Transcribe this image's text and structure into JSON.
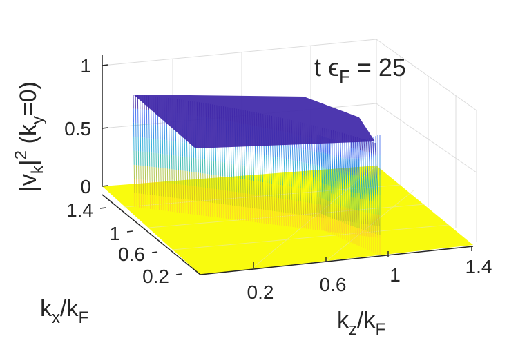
{
  "chart_data": {
    "type": "surface",
    "annotation": {
      "prefix": "t ",
      "symbol": "ϵ",
      "sub": "F",
      "suffix": " = 25"
    },
    "zlabel": {
      "base": "|v",
      "sub1": "k",
      "mid": "|",
      "sup": "2",
      "open": " (k",
      "sub2": "y",
      "close": "=0)"
    },
    "xlabel": {
      "base": "k",
      "sub": "x",
      "mid": "/k",
      "sub2": "F"
    },
    "ylabel": {
      "base": "k",
      "sub": "z",
      "mid": "/k",
      "sub2": "F"
    },
    "z_ticks": [
      "0",
      "0.5",
      "1"
    ],
    "kx_ticks": [
      "0.2",
      "0.6",
      "1",
      "1.4"
    ],
    "kz_ticks": [
      "0.2",
      "0.6",
      "1",
      "1.4"
    ],
    "zlim": [
      0,
      1
    ],
    "plateau_value": 0.75,
    "floor_color": "#f9fb0e",
    "top_color": "#3e26a8",
    "grid": true
  }
}
